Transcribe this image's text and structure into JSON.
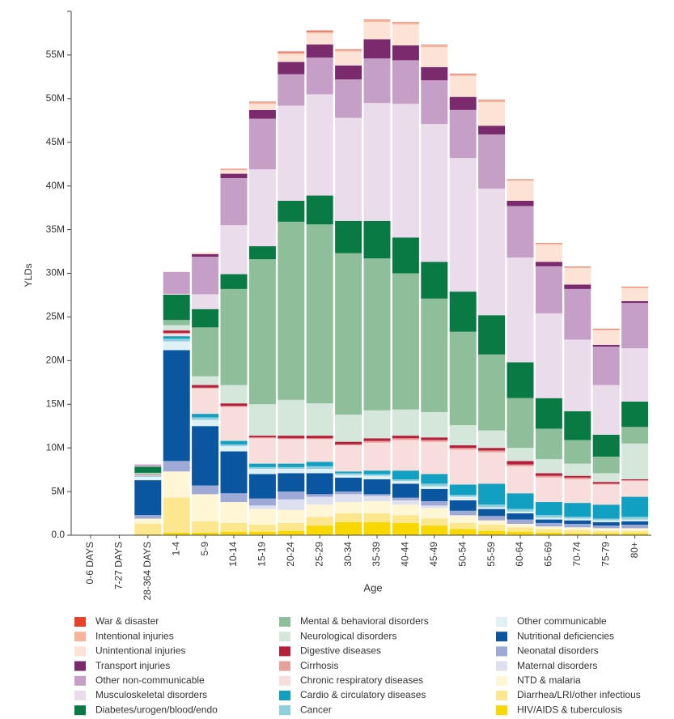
{
  "chart_data": {
    "type": "stacked_bar",
    "y_label": "YLDs",
    "x_label": "Age",
    "categories": [
      "0-6 DAYS",
      "7-27 DAYS",
      "28-364 DAYS",
      "1-4",
      "5-9",
      "10-14",
      "15-19",
      "20-24",
      "25-29",
      "30-34",
      "35-39",
      "40-44",
      "45-49",
      "50-54",
      "55-59",
      "60-64",
      "65-69",
      "70-74",
      "75-79",
      "80+"
    ],
    "ylim": [
      0,
      60
    ],
    "yticks": [
      {
        "value": 0,
        "label": "0.0"
      },
      {
        "value": 5,
        "label": "5M"
      },
      {
        "value": 10,
        "label": "10M"
      },
      {
        "value": 15,
        "label": "15M"
      },
      {
        "value": 20,
        "label": "20M"
      },
      {
        "value": 25,
        "label": "25M"
      },
      {
        "value": 30,
        "label": "30M"
      },
      {
        "value": 35,
        "label": "35M"
      },
      {
        "value": 40,
        "label": "40M"
      },
      {
        "value": 45,
        "label": "45M"
      },
      {
        "value": 50,
        "label": "50M"
      },
      {
        "value": 55,
        "label": "55M"
      }
    ],
    "series": [
      {
        "name": "War & disaster",
        "color": "#e8412c",
        "values": [
          0,
          0,
          0,
          0,
          0,
          0.05,
          0.05,
          0.1,
          0.1,
          0.05,
          0.05,
          0.05,
          0.05,
          0.05,
          0.05,
          0.05,
          0.05,
          0.05,
          0.05,
          0.05
        ]
      },
      {
        "name": "Intentional injuries",
        "color": "#f7b49a",
        "values": [
          0,
          0,
          0,
          0,
          0,
          0.1,
          0.2,
          0.2,
          0.2,
          0.2,
          0.2,
          0.2,
          0.2,
          0.2,
          0.2,
          0.1,
          0.1,
          0.1,
          0.1,
          0.1
        ]
      },
      {
        "name": "Unintentional injuries",
        "color": "#fde3d6",
        "values": [
          0,
          0,
          0.05,
          0.05,
          0.2,
          0.4,
          0.7,
          0.9,
          1.3,
          1.6,
          2.0,
          2.4,
          2.3,
          2.4,
          2.7,
          2.3,
          2.0,
          1.9,
          1.7,
          1.5
        ]
      },
      {
        "name": "Transport injuries",
        "color": "#7b2a6e",
        "values": [
          0,
          0,
          0,
          0,
          0.3,
          0.5,
          1.0,
          1.4,
          1.5,
          1.6,
          2.2,
          1.7,
          1.5,
          1.5,
          1.0,
          0.6,
          0.5,
          0.5,
          0.2,
          0.2
        ]
      },
      {
        "name": "Other non-communicable",
        "color": "#c59fc6",
        "values": [
          0,
          0,
          0.2,
          2.5,
          4.3,
          5.4,
          5.8,
          3.6,
          4.2,
          4.4,
          5.1,
          5.0,
          5.0,
          5.5,
          6.2,
          5.9,
          5.4,
          5.8,
          4.4,
          5.2
        ]
      },
      {
        "name": "Musculoskeletal disorders",
        "color": "#ebdcec",
        "values": [
          0,
          0,
          0.05,
          0.1,
          1.7,
          5.6,
          8.8,
          10.9,
          11.6,
          11.8,
          13.5,
          15.3,
          15.8,
          15.3,
          14.5,
          12.0,
          9.7,
          8.2,
          5.7,
          6.1
        ]
      },
      {
        "name": "Diabetes/urogen/blood/endo",
        "color": "#0a7a45",
        "values": [
          0,
          0,
          0.7,
          2.9,
          2.1,
          1.7,
          1.5,
          2.4,
          3.3,
          3.7,
          4.3,
          4.1,
          4.2,
          4.6,
          4.5,
          4.1,
          3.5,
          3.3,
          2.5,
          2.9
        ]
      },
      {
        "name": "Mental & behavioral disorders",
        "color": "#8fbe9b",
        "values": [
          0,
          0,
          0.1,
          0.6,
          5.6,
          11.0,
          16.6,
          20.4,
          20.5,
          18.5,
          17.4,
          15.6,
          13.0,
          10.7,
          8.7,
          5.7,
          3.5,
          2.7,
          1.9,
          1.9
        ]
      },
      {
        "name": "Neurological disorders",
        "color": "#d5e7da",
        "values": [
          0,
          0,
          0.1,
          0.6,
          1.0,
          2.1,
          3.6,
          4.1,
          3.7,
          3.1,
          3.2,
          3.0,
          2.9,
          2.3,
          2.0,
          1.5,
          1.6,
          1.4,
          1.0,
          4.1
        ]
      },
      {
        "name": "Digestive diseases",
        "color": "#b51f3c",
        "values": [
          0,
          0,
          0.05,
          0.3,
          0.3,
          0.3,
          0.2,
          0.3,
          0.3,
          0.3,
          0.3,
          0.3,
          0.3,
          0.3,
          0.3,
          0.4,
          0.3,
          0.2,
          0.2,
          0.1
        ]
      },
      {
        "name": "Cirrhosis",
        "color": "#e8a09d",
        "values": [
          0,
          0,
          0,
          0.05,
          0.1,
          0.1,
          0.1,
          0.1,
          0.1,
          0.1,
          0.2,
          0.2,
          0.2,
          0.2,
          0.2,
          0.2,
          0.2,
          0.2,
          0.1,
          0.1
        ]
      },
      {
        "name": "Chronic respiratory diseases",
        "color": "#f7dedd",
        "values": [
          0,
          0,
          0.1,
          0.3,
          2.9,
          3.9,
          2.9,
          2.8,
          2.6,
          3.0,
          3.2,
          3.5,
          3.7,
          4.0,
          3.6,
          3.1,
          2.8,
          2.7,
          2.3,
          1.8
        ]
      },
      {
        "name": "Cardio & circulatory diseases",
        "color": "#11a0c2",
        "values": [
          0,
          0,
          0.05,
          0.3,
          0.4,
          0.4,
          0.4,
          0.4,
          0.5,
          0.2,
          0.4,
          1.0,
          1.1,
          1.2,
          2.4,
          1.8,
          1.5,
          1.6,
          1.6,
          2.3
        ]
      },
      {
        "name": "Cancer",
        "color": "#8fcfdd",
        "values": [
          0,
          0,
          0.05,
          0.3,
          0.3,
          0.2,
          0.2,
          0.2,
          0.3,
          0.2,
          0.2,
          0.2,
          0.3,
          0.2,
          0.3,
          0.3,
          0.3,
          0.2,
          0.2,
          0.3
        ]
      },
      {
        "name": "Other communicable",
        "color": "#dff1f4",
        "values": [
          0,
          0,
          0.4,
          1.0,
          0.7,
          0.6,
          0.6,
          0.5,
          0.5,
          0.3,
          0.4,
          0.3,
          0.3,
          0.4,
          0.2,
          0.2,
          0.2,
          0.2,
          0.2,
          0.2
        ]
      },
      {
        "name": "Nutritional deficiencies",
        "color": "#0b56a0",
        "values": [
          0,
          0,
          4.0,
          12.7,
          6.8,
          4.8,
          2.8,
          2.1,
          2.4,
          1.6,
          1.7,
          1.6,
          1.4,
          1.2,
          0.8,
          0.7,
          0.4,
          0.4,
          0.4,
          0.4
        ]
      },
      {
        "name": "Neonatal disorders",
        "color": "#9ea9d6",
        "values": [
          0,
          0,
          0.4,
          1.2,
          1.0,
          1.0,
          0.8,
          0.9,
          0.3,
          0.3,
          0.2,
          0.3,
          0.5,
          0.5,
          0.5,
          0.5,
          0.4,
          0.4,
          0.3,
          0.4
        ]
      },
      {
        "name": "Maternal disorders",
        "color": "#dfe0ef",
        "values": [
          0,
          0,
          0,
          0,
          0,
          0,
          0.4,
          1.2,
          0.9,
          0.9,
          0.6,
          0.5,
          0.3,
          0.1,
          0,
          0,
          0,
          0,
          0,
          0
        ]
      },
      {
        "name": "NTD & malaria",
        "color": "#fff6d6",
        "values": [
          0,
          0,
          0.6,
          3.0,
          3.1,
          2.4,
          1.8,
          1.5,
          1.4,
          1.3,
          1.4,
          1.2,
          1.2,
          0.8,
          0.5,
          0.4,
          0.3,
          0.3,
          0.3,
          0.3
        ]
      },
      {
        "name": "Diarrhea/LRI/other infectious",
        "color": "#fde78e",
        "values": [
          0,
          0,
          1.2,
          4.0,
          1.3,
          1.0,
          0.8,
          0.9,
          1.0,
          1.0,
          1.0,
          0.9,
          0.8,
          0.7,
          0.7,
          0.5,
          0.4,
          0.4,
          0.3,
          0.3
        ]
      },
      {
        "name": "HIV/AIDS & tuberculosis",
        "color": "#f8d800",
        "values": [
          0,
          0,
          0.1,
          0.3,
          0.3,
          0.4,
          0.4,
          0.5,
          1.1,
          1.5,
          1.5,
          1.4,
          1.1,
          0.7,
          0.5,
          0.4,
          0.3,
          0.2,
          0.2,
          0.2
        ]
      }
    ]
  }
}
